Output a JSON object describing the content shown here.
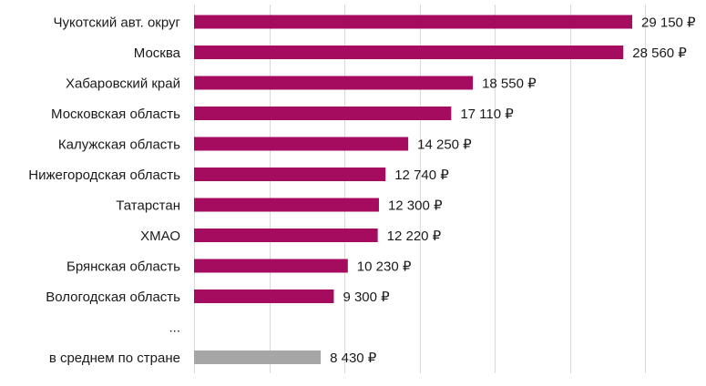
{
  "chart_data": {
    "type": "bar",
    "orientation": "horizontal",
    "title": "",
    "xlabel": "",
    "ylabel": "",
    "categories": [
      "Чукотский авт. округ",
      "Москва",
      "Хабаровский край",
      "Московская область",
      "Калужская область",
      "Нижегородская область",
      "Татарстан",
      "ХМАО",
      "Брянская область",
      "Вологодская область",
      "...",
      "в среднем по стране"
    ],
    "values": [
      29150,
      28560,
      18550,
      17110,
      14250,
      12740,
      12300,
      12220,
      10230,
      9300,
      null,
      8430
    ],
    "value_labels": [
      "29 150 ₽",
      "28 560 ₽",
      "18 550 ₽",
      "17 110 ₽",
      "14 250 ₽",
      "12 740 ₽",
      "12 300 ₽",
      "12 220 ₽",
      "10 230 ₽",
      "9 300 ₽",
      "",
      "8 430 ₽"
    ],
    "bar_colors": [
      "#a50b5e",
      "#a50b5e",
      "#a50b5e",
      "#a50b5e",
      "#a50b5e",
      "#a50b5e",
      "#a50b5e",
      "#a50b5e",
      "#a50b5e",
      "#a50b5e",
      "#a50b5e",
      "#a6a6a6"
    ],
    "xlim": [
      0,
      35000
    ],
    "grid_step": 5000,
    "grid": true,
    "legend": "none"
  }
}
